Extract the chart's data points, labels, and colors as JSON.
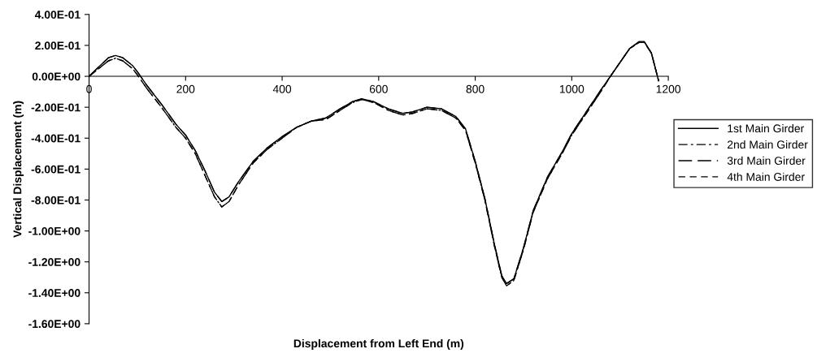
{
  "chart_data": {
    "type": "line",
    "xlabel": "Displacement from Left End (m)",
    "ylabel": "Vertical Displacement (m)",
    "xlim": [
      0,
      1200
    ],
    "xticks": [
      0,
      200,
      400,
      600,
      800,
      1000,
      1200
    ],
    "ylim": [
      -1.6,
      0.4
    ],
    "yticks": [
      {
        "value": 0.4,
        "label": "4.00E-01"
      },
      {
        "value": 0.2,
        "label": "2.00E-01"
      },
      {
        "value": 0,
        "label": "0.00E+00"
      },
      {
        "value": -0.2,
        "label": "-2.00E-01"
      },
      {
        "value": -0.4,
        "label": "-4.00E-01"
      },
      {
        "value": -0.6,
        "label": "-6.00E-01"
      },
      {
        "value": -0.8,
        "label": "-8.00E-01"
      },
      {
        "value": -1.0,
        "label": "-1.00E+00"
      },
      {
        "value": -1.2,
        "label": "-1.20E+00"
      },
      {
        "value": -1.4,
        "label": "-1.40E+00"
      },
      {
        "value": -1.6,
        "label": "-1.60E+00"
      }
    ],
    "x": [
      0,
      20,
      40,
      55,
      70,
      90,
      100,
      120,
      150,
      180,
      200,
      220,
      240,
      260,
      275,
      290,
      310,
      340,
      370,
      400,
      430,
      460,
      490,
      520,
      545,
      565,
      590,
      620,
      650,
      670,
      700,
      730,
      760,
      780,
      800,
      820,
      840,
      855,
      865,
      880,
      900,
      920,
      950,
      980,
      1000,
      1030,
      1060,
      1080,
      1100,
      1120,
      1140,
      1150,
      1165,
      1180
    ],
    "grid": false,
    "legend": "right",
    "marker": "none",
    "series": [
      {
        "name": "1st Main Girder",
        "color": "#000000",
        "line_style": "solid",
        "values": [
          0,
          0.06,
          0.12,
          0.135,
          0.12,
          0.07,
          0.03,
          -0.06,
          -0.18,
          -0.31,
          -0.38,
          -0.48,
          -0.61,
          -0.75,
          -0.81,
          -0.78,
          -0.68,
          -0.55,
          -0.46,
          -0.39,
          -0.33,
          -0.29,
          -0.27,
          -0.21,
          -0.165,
          -0.145,
          -0.165,
          -0.21,
          -0.24,
          -0.23,
          -0.2,
          -0.21,
          -0.26,
          -0.34,
          -0.55,
          -0.79,
          -1.09,
          -1.29,
          -1.34,
          -1.31,
          -1.11,
          -0.87,
          -0.65,
          -0.49,
          -0.37,
          -0.23,
          -0.09,
          0.0,
          0.09,
          0.18,
          0.225,
          0.225,
          0.15,
          -0.03
        ]
      },
      {
        "name": "2nd Main Girder",
        "color": "#000000",
        "line_style": "dashdot",
        "values": [
          0,
          0.05,
          0.1,
          0.117,
          0.1,
          0.05,
          0.01,
          -0.08,
          -0.2,
          -0.33,
          -0.4,
          -0.5,
          -0.64,
          -0.78,
          -0.845,
          -0.81,
          -0.7,
          -0.56,
          -0.47,
          -0.4,
          -0.33,
          -0.29,
          -0.28,
          -0.22,
          -0.17,
          -0.15,
          -0.17,
          -0.22,
          -0.25,
          -0.24,
          -0.21,
          -0.22,
          -0.27,
          -0.35,
          -0.56,
          -0.8,
          -1.1,
          -1.3,
          -1.355,
          -1.32,
          -1.12,
          -0.88,
          -0.66,
          -0.5,
          -0.38,
          -0.24,
          -0.1,
          0.0,
          0.09,
          0.18,
          0.22,
          0.22,
          0.15,
          -0.03
        ]
      },
      {
        "name": "3rd Main Girder",
        "color": "#000000",
        "line_style": "longdash",
        "values": [
          0,
          0.06,
          0.12,
          0.135,
          0.12,
          0.07,
          0.03,
          -0.06,
          -0.18,
          -0.31,
          -0.38,
          -0.48,
          -0.61,
          -0.75,
          -0.81,
          -0.78,
          -0.68,
          -0.55,
          -0.46,
          -0.39,
          -0.33,
          -0.29,
          -0.27,
          -0.21,
          -0.165,
          -0.145,
          -0.165,
          -0.21,
          -0.24,
          -0.23,
          -0.2,
          -0.21,
          -0.26,
          -0.34,
          -0.55,
          -0.79,
          -1.09,
          -1.29,
          -1.34,
          -1.31,
          -1.11,
          -0.87,
          -0.65,
          -0.49,
          -0.37,
          -0.23,
          -0.09,
          0.0,
          0.09,
          0.18,
          0.225,
          0.225,
          0.15,
          -0.03
        ]
      },
      {
        "name": "4th Main Girder",
        "color": "#000000",
        "line_style": "dashed",
        "values": [
          0,
          0.05,
          0.1,
          0.117,
          0.1,
          0.05,
          0.01,
          -0.08,
          -0.2,
          -0.33,
          -0.4,
          -0.5,
          -0.64,
          -0.78,
          -0.845,
          -0.81,
          -0.7,
          -0.56,
          -0.47,
          -0.4,
          -0.33,
          -0.29,
          -0.28,
          -0.22,
          -0.17,
          -0.15,
          -0.17,
          -0.22,
          -0.25,
          -0.24,
          -0.21,
          -0.22,
          -0.27,
          -0.35,
          -0.56,
          -0.8,
          -1.1,
          -1.3,
          -1.355,
          -1.32,
          -1.12,
          -0.88,
          -0.66,
          -0.5,
          -0.38,
          -0.24,
          -0.1,
          0.0,
          0.09,
          0.18,
          0.22,
          0.22,
          0.15,
          -0.03
        ]
      }
    ]
  }
}
